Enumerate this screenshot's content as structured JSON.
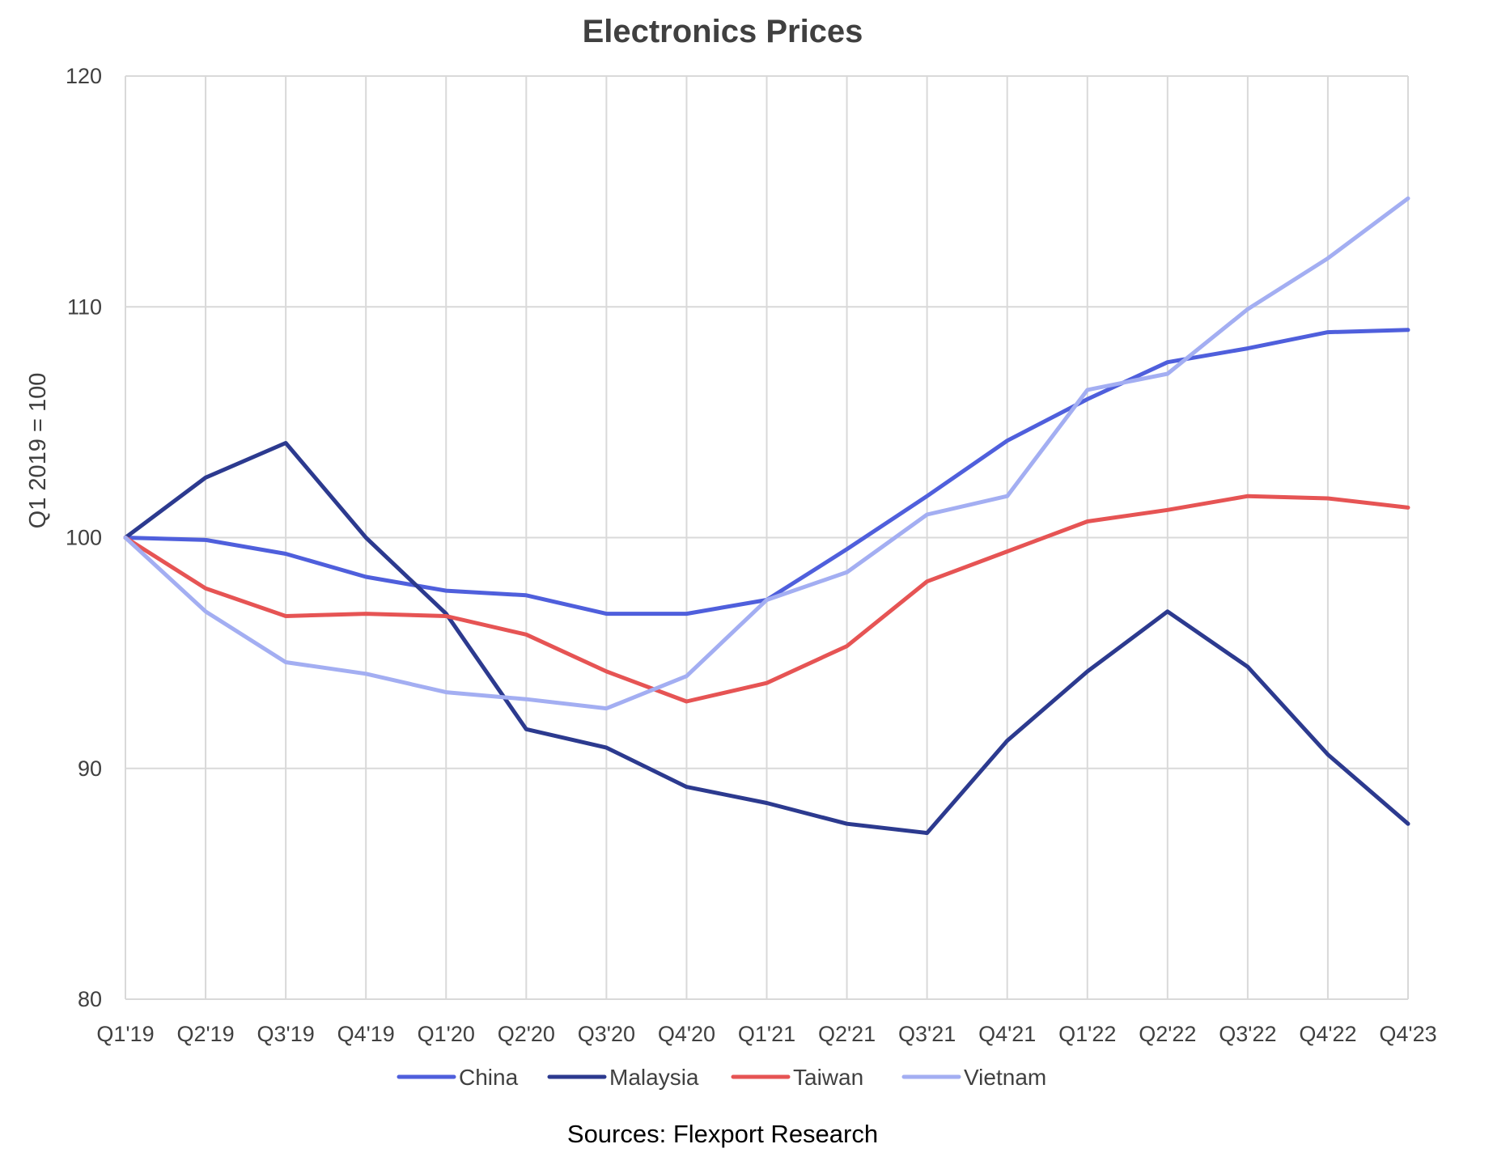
{
  "chart_data": {
    "type": "line",
    "title": "Electronics Prices",
    "ylabel": "Q1 2019 = 100",
    "xlabel": "",
    "ylim": [
      80,
      120
    ],
    "yticks": [
      80,
      90,
      100,
      110,
      120
    ],
    "grid": true,
    "legend_position": "bottom",
    "categories": [
      "Q1'19",
      "Q2'19",
      "Q3'19",
      "Q4'19",
      "Q1'20",
      "Q2'20",
      "Q3'20",
      "Q4'20",
      "Q1'21",
      "Q2'21",
      "Q3'21",
      "Q4'21",
      "Q1'22",
      "Q2'22",
      "Q3'22",
      "Q4'22",
      "Q4'23"
    ],
    "series": [
      {
        "name": "China",
        "color": "#4f5fdc",
        "values": [
          100.0,
          99.9,
          99.3,
          98.3,
          97.7,
          97.5,
          96.7,
          96.7,
          97.3,
          99.5,
          101.8,
          104.2,
          106.0,
          107.6,
          108.2,
          108.9,
          109.0
        ]
      },
      {
        "name": "Malaysia",
        "color": "#2c3a8f",
        "values": [
          100.0,
          102.6,
          104.1,
          100.0,
          96.7,
          91.7,
          90.9,
          89.2,
          88.5,
          87.6,
          87.2,
          91.2,
          94.2,
          96.8,
          94.4,
          90.6,
          87.6
        ]
      },
      {
        "name": "Taiwan",
        "color": "#e65454",
        "values": [
          100.0,
          97.8,
          96.6,
          96.7,
          96.6,
          95.8,
          94.2,
          92.9,
          93.7,
          95.3,
          98.1,
          99.4,
          100.7,
          101.2,
          101.8,
          101.7,
          101.3
        ]
      },
      {
        "name": "Vietnam",
        "color": "#a3aef2",
        "values": [
          100.0,
          96.8,
          94.6,
          94.1,
          93.3,
          93.0,
          92.6,
          94.0,
          97.3,
          98.5,
          101.0,
          101.8,
          106.4,
          107.1,
          109.9,
          112.1,
          114.7
        ]
      }
    ]
  },
  "footer": {
    "source": "Sources: Flexport Research"
  }
}
